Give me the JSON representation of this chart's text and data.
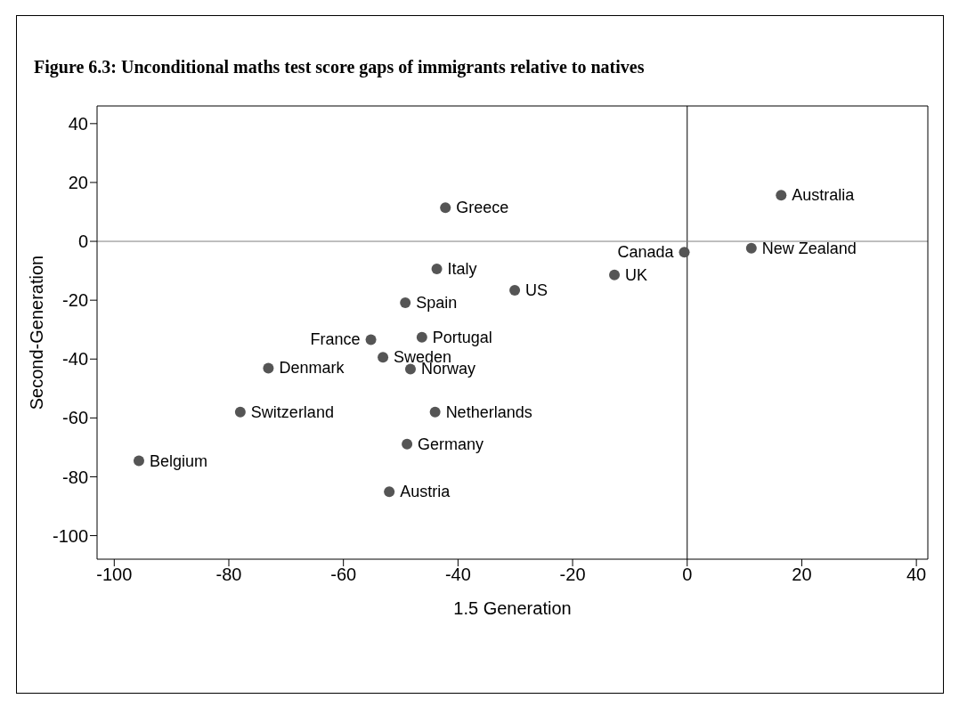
{
  "chart_data": {
    "type": "scatter",
    "title": "Figure 6.3: Unconditional maths test score gaps of immigrants relative to natives",
    "xlabel": "1.5 Generation",
    "ylabel": "Second-Generation",
    "xlim": [
      -103,
      42
    ],
    "ylim": [
      -108,
      46
    ],
    "xticks": [
      -100,
      -80,
      -60,
      -40,
      -20,
      0,
      20,
      40
    ],
    "yticks": [
      -100,
      -80,
      -60,
      -40,
      -20,
      0,
      20,
      40
    ],
    "grid": false,
    "legend": false,
    "marker": "circle",
    "ref_lines": [
      {
        "axis": "x",
        "value": 0,
        "color": "#000000"
      },
      {
        "axis": "y",
        "value": 0,
        "color": "#808080"
      }
    ],
    "series": [
      {
        "name": "Australia",
        "color": "#555555",
        "x": [
          16.4
        ],
        "values": [
          15.7
        ]
      },
      {
        "name": "Greece",
        "color": "#555555",
        "x": [
          -42.2
        ],
        "values": [
          11.4
        ]
      },
      {
        "name": "New Zealand",
        "color": "#555555",
        "x": [
          11.2
        ],
        "values": [
          -2.3
        ]
      },
      {
        "name": "Canada",
        "color": "#555555",
        "x": [
          -0.5
        ],
        "values": [
          -3.7
        ]
      },
      {
        "name": "UK",
        "color": "#555555",
        "x": [
          -12.7
        ],
        "values": [
          -11.4
        ]
      },
      {
        "name": "US",
        "color": "#555555",
        "x": [
          -30.1
        ],
        "values": [
          -16.6
        ]
      },
      {
        "name": "Italy",
        "color": "#555555",
        "x": [
          -43.7
        ],
        "values": [
          -9.4
        ]
      },
      {
        "name": "Spain",
        "color": "#555555",
        "x": [
          -49.2
        ],
        "values": [
          -20.9
        ]
      },
      {
        "name": "Portugal",
        "color": "#555555",
        "x": [
          -46.3
        ],
        "values": [
          -32.6
        ]
      },
      {
        "name": "France",
        "color": "#555555",
        "x": [
          -55.2
        ],
        "values": [
          -33.4
        ]
      },
      {
        "name": "Sweden",
        "color": "#555555",
        "x": [
          -53.1
        ],
        "values": [
          -39.4
        ]
      },
      {
        "name": "Norway",
        "color": "#555555",
        "x": [
          -48.3
        ],
        "values": [
          -43.4
        ]
      },
      {
        "name": "Denmark",
        "color": "#555555",
        "x": [
          -73.1
        ],
        "values": [
          -43.1
        ]
      },
      {
        "name": "Switzerland",
        "color": "#555555",
        "x": [
          -78
        ],
        "values": [
          -58
        ]
      },
      {
        "name": "Netherlands",
        "color": "#555555",
        "x": [
          -44
        ],
        "values": [
          -58
        ]
      },
      {
        "name": "Germany",
        "color": "#555555",
        "x": [
          -48.9
        ],
        "values": [
          -68.9
        ]
      },
      {
        "name": "Austria",
        "color": "#555555",
        "x": [
          -52
        ],
        "values": [
          -85.1
        ]
      },
      {
        "name": "Belgium",
        "color": "#555555",
        "x": [
          -95.7
        ],
        "values": [
          -74.6
        ]
      }
    ]
  }
}
